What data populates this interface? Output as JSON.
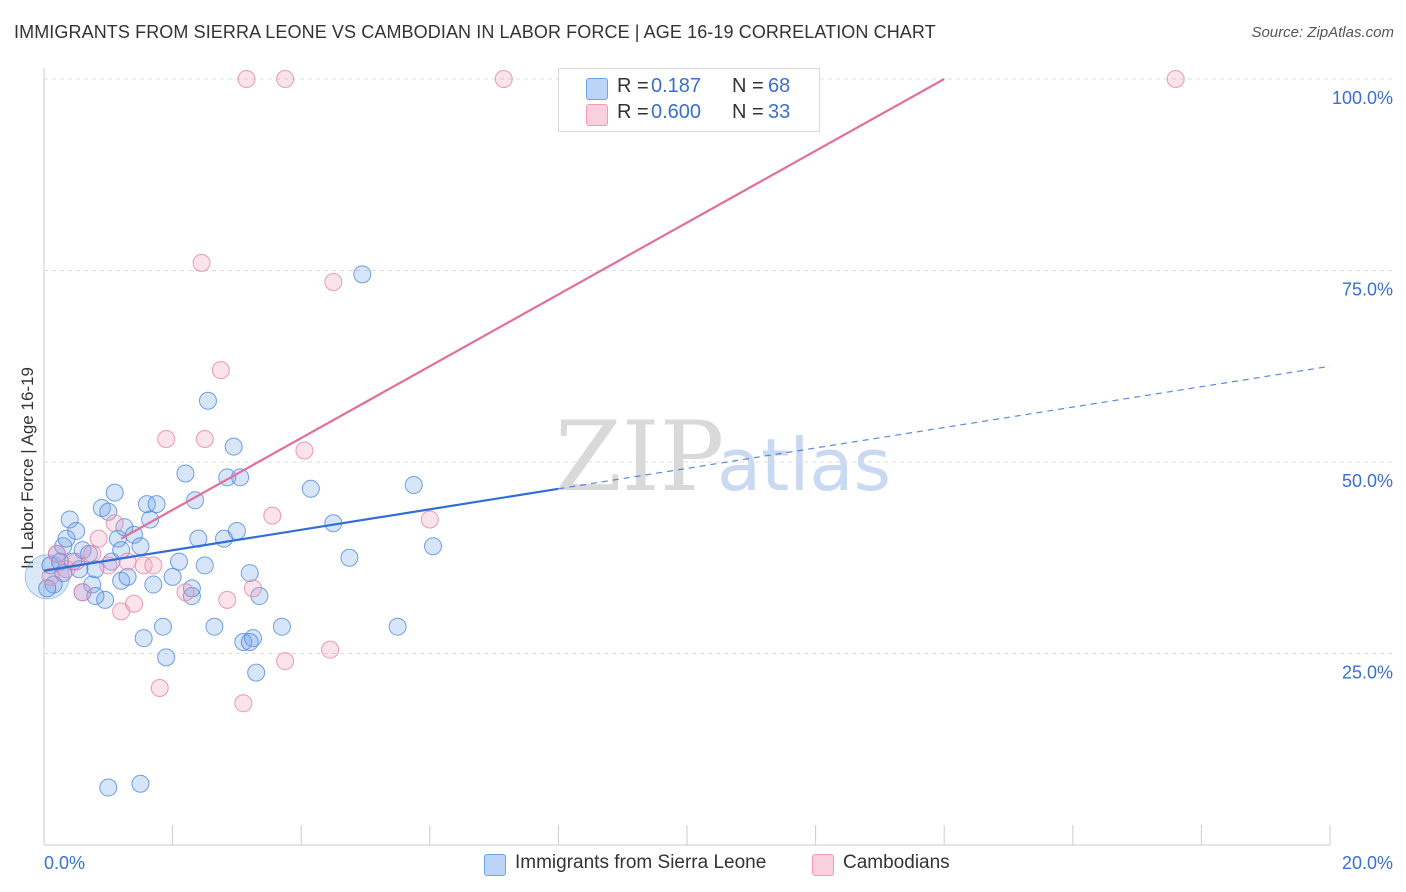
{
  "colors": {
    "blue": "#6fa3ea",
    "blue_line": "#2f6fd6",
    "pink": "#f29ab8",
    "pink_line": "#e0709a",
    "tick_text": "#3a6fd0"
  },
  "chart_data": {
    "type": "scatter",
    "title": "IMMIGRANTS FROM SIERRA LEONE VS CAMBODIAN IN LABOR FORCE | AGE 16-19 CORRELATION CHART",
    "source": "Source: ZipAtlas.com",
    "ylabel": "In Labor Force | Age 16-19",
    "xlim": [
      0,
      20
    ],
    "ylim": [
      0,
      100
    ],
    "x_tick_labels": [
      "0.0%",
      "20.0%"
    ],
    "y_ticks": [
      25,
      50,
      75,
      100
    ],
    "y_tick_labels": [
      "25.0%",
      "50.0%",
      "75.0%",
      "100.0%"
    ],
    "grid": true,
    "watermark": {
      "zip": "ZIP",
      "atlas": "atlas"
    },
    "legend": {
      "r_label": "R =",
      "n_label": "N =",
      "entries": [
        {
          "r": "0.187",
          "n": "68"
        },
        {
          "r": "0.600",
          "n": "33"
        }
      ]
    },
    "series": [
      {
        "name": "Immigrants from Sierra Leone",
        "color": "#6fa3ea",
        "trend": {
          "x0": 0,
          "y0": 35.8,
          "x1": 8,
          "y1": 46.5,
          "dash_x1": 20,
          "dash_y1": 62.5
        },
        "points": [
          [
            0.1,
            36.5
          ],
          [
            0.15,
            34
          ],
          [
            0.2,
            38
          ],
          [
            0.25,
            37
          ],
          [
            0.3,
            39
          ],
          [
            0.35,
            40
          ],
          [
            0.4,
            42.5
          ],
          [
            0.45,
            37
          ],
          [
            0.5,
            41
          ],
          [
            0.55,
            36
          ],
          [
            0.6,
            33
          ],
          [
            0.6,
            38.5
          ],
          [
            0.7,
            38
          ],
          [
            0.75,
            34
          ],
          [
            0.8,
            36
          ],
          [
            0.9,
            44
          ],
          [
            0.95,
            32
          ],
          [
            1.0,
            43.5
          ],
          [
            1.05,
            37
          ],
          [
            1.1,
            46
          ],
          [
            1.15,
            40
          ],
          [
            1.2,
            34.5
          ],
          [
            1.25,
            41.5
          ],
          [
            1.3,
            35
          ],
          [
            1.4,
            40.5
          ],
          [
            1.5,
            39
          ],
          [
            1.55,
            27
          ],
          [
            1.6,
            44.5
          ],
          [
            1.65,
            42.5
          ],
          [
            1.7,
            34
          ],
          [
            1.75,
            44.5
          ],
          [
            1.85,
            28.5
          ],
          [
            1.9,
            24.5
          ],
          [
            2.0,
            35
          ],
          [
            2.1,
            37
          ],
          [
            2.2,
            48.5
          ],
          [
            2.3,
            32.5
          ],
          [
            2.35,
            45
          ],
          [
            2.4,
            40
          ],
          [
            2.5,
            36.5
          ],
          [
            2.55,
            58
          ],
          [
            2.65,
            28.5
          ],
          [
            2.8,
            40
          ],
          [
            2.85,
            48
          ],
          [
            2.95,
            52
          ],
          [
            3.0,
            41
          ],
          [
            3.05,
            48
          ],
          [
            3.1,
            26.5
          ],
          [
            3.2,
            35.5
          ],
          [
            3.25,
            27
          ],
          [
            3.3,
            22.5
          ],
          [
            3.35,
            32.5
          ],
          [
            3.7,
            28.5
          ],
          [
            3.2,
            26.5
          ],
          [
            4.15,
            46.5
          ],
          [
            4.5,
            42
          ],
          [
            4.75,
            37.5
          ],
          [
            5.5,
            28.5
          ],
          [
            4.95,
            74.5
          ],
          [
            6.05,
            39
          ],
          [
            5.75,
            47
          ],
          [
            1.0,
            7.5
          ],
          [
            1.5,
            8
          ],
          [
            0.05,
            33.5
          ],
          [
            0.3,
            35.5
          ],
          [
            0.8,
            32.5
          ],
          [
            1.2,
            38.5
          ],
          [
            2.3,
            33.5
          ]
        ]
      },
      {
        "name": "Cambodians",
        "color": "#f29ab8",
        "trend": {
          "x0": 1.2,
          "y0": 40,
          "x1": 14,
          "y1": 100
        },
        "points": [
          [
            0.1,
            35
          ],
          [
            0.2,
            38
          ],
          [
            0.35,
            36
          ],
          [
            0.5,
            37
          ],
          [
            0.6,
            33
          ],
          [
            0.75,
            38
          ],
          [
            0.85,
            40
          ],
          [
            1.0,
            36.5
          ],
          [
            1.1,
            42
          ],
          [
            1.2,
            30.5
          ],
          [
            1.3,
            37
          ],
          [
            1.4,
            31.5
          ],
          [
            1.55,
            36.5
          ],
          [
            1.7,
            36.5
          ],
          [
            1.8,
            20.5
          ],
          [
            1.9,
            53
          ],
          [
            2.2,
            33
          ],
          [
            2.45,
            76
          ],
          [
            2.5,
            53
          ],
          [
            2.75,
            62
          ],
          [
            2.85,
            32
          ],
          [
            3.1,
            18.5
          ],
          [
            3.25,
            33.5
          ],
          [
            3.55,
            43
          ],
          [
            3.75,
            24
          ],
          [
            4.05,
            51.5
          ],
          [
            4.45,
            25.5
          ],
          [
            3.15,
            100
          ],
          [
            3.75,
            100
          ],
          [
            7.15,
            100
          ],
          [
            17.6,
            100
          ],
          [
            4.5,
            73.5
          ],
          [
            6.0,
            42.5
          ]
        ]
      }
    ]
  }
}
